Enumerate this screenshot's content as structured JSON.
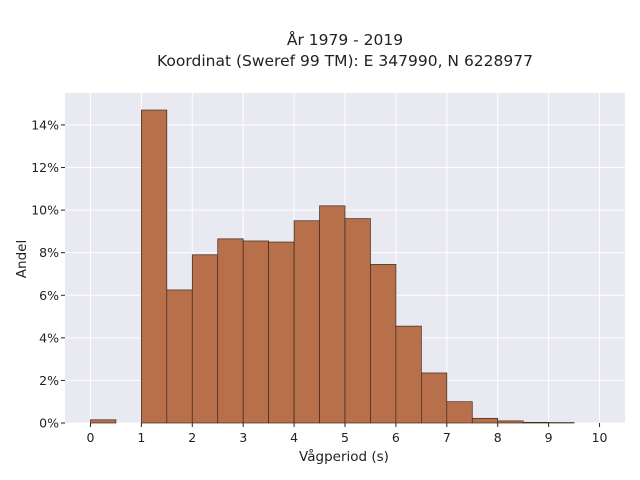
{
  "chart_data": {
    "type": "bar",
    "title_lines": [
      "År 1979 - 2019",
      "Koordinat (Sweref 99 TM): E 347990, N 6228977"
    ],
    "xlabel": "Vågperiod (s)",
    "ylabel": "Andel",
    "xlim": [
      -0.5,
      10.5
    ],
    "ylim": [
      0,
      15.5
    ],
    "x_ticks": [
      0,
      1,
      2,
      3,
      4,
      5,
      6,
      7,
      8,
      9,
      10
    ],
    "x_tick_labels": [
      "0",
      "1",
      "2",
      "3",
      "4",
      "5",
      "6",
      "7",
      "8",
      "9",
      "10"
    ],
    "y_ticks": [
      0,
      2,
      4,
      6,
      8,
      10,
      12,
      14
    ],
    "y_tick_labels": [
      "0%",
      "2%",
      "4%",
      "6%",
      "8%",
      "10%",
      "12%",
      "14%"
    ],
    "grid": true,
    "bin_width": 0.5,
    "bin_starts": [
      0,
      0.5,
      1,
      1.5,
      2,
      2.5,
      3,
      3.5,
      4,
      4.5,
      5,
      5.5,
      6,
      6.5,
      7,
      7.5,
      8,
      8.5,
      9,
      9.5
    ],
    "values": [
      0.15,
      0,
      14.7,
      6.25,
      7.9,
      8.65,
      8.55,
      8.5,
      9.5,
      10.2,
      9.6,
      7.45,
      4.55,
      2.35,
      1.0,
      0.22,
      0.1,
      0.03,
      0.02,
      0.0
    ],
    "bar_color": "#b8704a",
    "bar_edge_color": "#3d2a1e",
    "plot_background": "#e9e9f2",
    "grid_color": "#ffffff"
  }
}
